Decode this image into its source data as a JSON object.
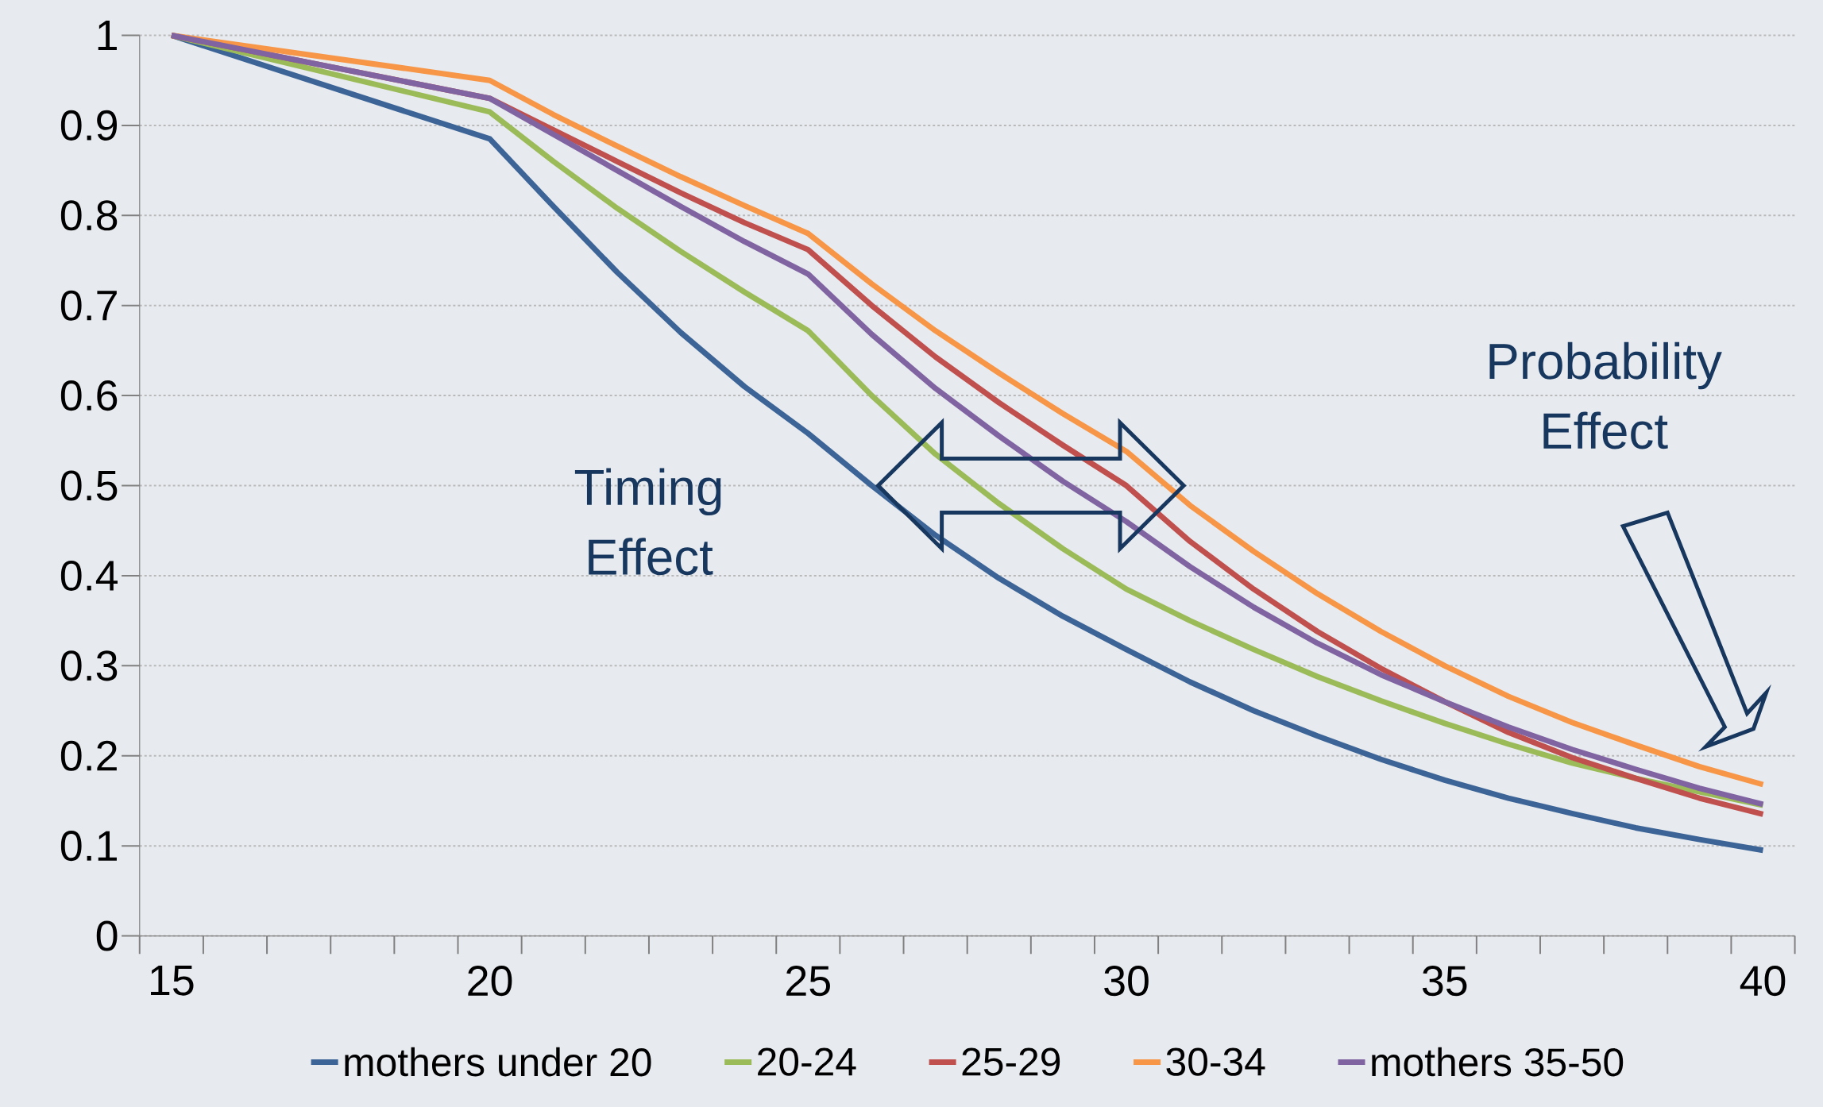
{
  "chart_data": {
    "type": "line",
    "x": [
      15,
      20,
      21,
      22,
      23,
      24,
      25,
      26,
      27,
      28,
      29,
      30,
      31,
      32,
      33,
      34,
      35,
      36,
      37,
      38,
      39,
      40
    ],
    "series": [
      {
        "name": "mothers under 20",
        "color": "#3c6496",
        "values": [
          1.0,
          0.885,
          0.81,
          0.737,
          0.67,
          0.61,
          0.558,
          0.5,
          0.445,
          0.397,
          0.355,
          0.318,
          0.282,
          0.25,
          0.222,
          0.196,
          0.173,
          0.153,
          0.136,
          0.12,
          0.107,
          0.095
        ]
      },
      {
        "name": "20-24",
        "color": "#9bbb59",
        "values": [
          1.0,
          0.915,
          0.86,
          0.808,
          0.76,
          0.715,
          0.672,
          0.6,
          0.535,
          0.48,
          0.43,
          0.385,
          0.35,
          0.318,
          0.288,
          0.261,
          0.236,
          0.213,
          0.192,
          0.175,
          0.16,
          0.145
        ]
      },
      {
        "name": "25-29",
        "color": "#c0504d",
        "values": [
          1.0,
          0.93,
          0.895,
          0.86,
          0.825,
          0.792,
          0.762,
          0.7,
          0.643,
          0.592,
          0.545,
          0.5,
          0.438,
          0.385,
          0.338,
          0.297,
          0.26,
          0.226,
          0.198,
          0.175,
          0.153,
          0.135
        ]
      },
      {
        "name": "30-34",
        "color": "#f79646",
        "values": [
          1.0,
          0.95,
          0.912,
          0.877,
          0.843,
          0.811,
          0.78,
          0.724,
          0.672,
          0.625,
          0.58,
          0.538,
          0.478,
          0.427,
          0.38,
          0.338,
          0.3,
          0.266,
          0.237,
          0.212,
          0.188,
          0.168
        ]
      },
      {
        "name": "mothers 35-50",
        "color": "#8064a2",
        "values": [
          1.0,
          0.93,
          0.89,
          0.85,
          0.81,
          0.771,
          0.735,
          0.668,
          0.608,
          0.555,
          0.505,
          0.46,
          0.41,
          0.365,
          0.325,
          0.29,
          0.26,
          0.232,
          0.207,
          0.185,
          0.164,
          0.146
        ]
      }
    ],
    "xlim": [
      14.5,
      40.5
    ],
    "xticks": [
      15,
      20,
      25,
      30,
      35,
      40
    ],
    "ylim": [
      0,
      1
    ],
    "yticks": [
      0,
      0.1,
      0.2,
      0.3,
      0.4,
      0.5,
      0.6,
      0.7,
      0.8,
      0.9,
      1
    ],
    "grid": "y",
    "legend": "bottom",
    "marker": "none",
    "line_style": "solid",
    "annotations": [
      "Timing Effect",
      "Probability Effect"
    ]
  }
}
